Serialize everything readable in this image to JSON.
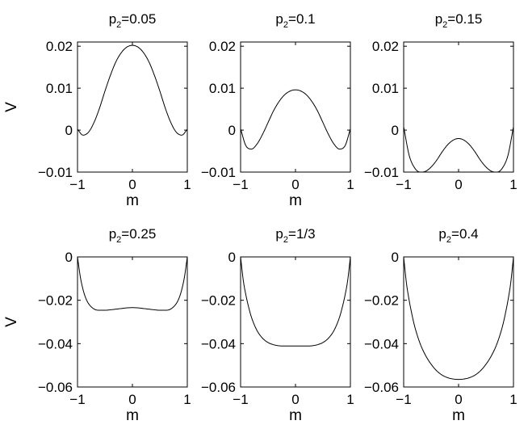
{
  "chart_data": [
    {
      "type": "line",
      "title": {
        "base": "p",
        "sub": "2",
        "rest": "=0.05"
      },
      "xlabel": "m",
      "ylabel": "V",
      "xlim": [
        -1,
        1
      ],
      "ylim": [
        -0.01,
        0.021
      ],
      "xticks": [
        -1,
        0,
        1
      ],
      "yticks": [
        -0.01,
        0,
        0.01,
        0.02
      ],
      "xtick_labels": [
        "−1",
        "0",
        "1"
      ],
      "ytick_labels": [
        "−0.01",
        "0",
        "0.01",
        "0.02"
      ],
      "show_ylabel": true,
      "grid": false,
      "series": [
        {
          "x": [
            -1,
            -0.9,
            -0.8,
            -0.7,
            -0.6,
            -0.5,
            -0.4,
            -0.3,
            -0.2,
            -0.1,
            0,
            0.1,
            0.2,
            0.3,
            0.4,
            0.5,
            0.6,
            0.7,
            0.8,
            0.9,
            1
          ],
          "y": [
            0.0002,
            -0.0012,
            -0.0005,
            0.0018,
            0.0052,
            0.0093,
            0.0131,
            0.0163,
            0.0185,
            0.0198,
            0.0202,
            0.0198,
            0.0185,
            0.0163,
            0.0131,
            0.0093,
            0.0052,
            0.0018,
            -0.0005,
            -0.0012,
            0.0002
          ]
        }
      ]
    },
    {
      "type": "line",
      "title": {
        "base": "p",
        "sub": "2",
        "rest": "=0.1"
      },
      "xlabel": "m",
      "ylabel": "",
      "xlim": [
        -1,
        1
      ],
      "ylim": [
        -0.01,
        0.021
      ],
      "xticks": [
        -1,
        0,
        1
      ],
      "yticks": [
        -0.01,
        0,
        0.01,
        0.02
      ],
      "xtick_labels": [
        "−1",
        "0",
        "1"
      ],
      "ytick_labels": [
        "−0.01",
        "0",
        "0.01",
        "0.02"
      ],
      "show_ylabel": false,
      "grid": false,
      "series": [
        {
          "x": [
            -1,
            -0.9,
            -0.8,
            -0.7,
            -0.6,
            -0.5,
            -0.4,
            -0.3,
            -0.2,
            -0.1,
            0,
            0.1,
            0.2,
            0.3,
            0.4,
            0.5,
            0.6,
            0.7,
            0.8,
            0.9,
            1
          ],
          "y": [
            0.0003,
            -0.0038,
            -0.0045,
            -0.0033,
            -0.001,
            0.0018,
            0.0046,
            0.0068,
            0.0084,
            0.0093,
            0.0096,
            0.0093,
            0.0084,
            0.0068,
            0.0046,
            0.0018,
            -0.001,
            -0.0033,
            -0.0045,
            -0.0038,
            0.0003
          ]
        }
      ]
    },
    {
      "type": "line",
      "title": {
        "base": "p",
        "sub": "2",
        "rest": "=0.15"
      },
      "xlabel": "",
      "ylabel": "",
      "xlim": [
        -1,
        1
      ],
      "ylim": [
        -0.01,
        0.021
      ],
      "xticks": [
        -1,
        0,
        1
      ],
      "yticks": [
        -0.01,
        0,
        0.01,
        0.02
      ],
      "xtick_labels": [
        "−1",
        "0",
        "1"
      ],
      "ytick_labels": [
        "−0.01",
        "0",
        "0.01",
        "0.02"
      ],
      "show_ylabel": false,
      "grid": false,
      "series": [
        {
          "x": [
            -1,
            -0.9,
            -0.8,
            -0.7,
            -0.6,
            -0.5,
            -0.4,
            -0.3,
            -0.2,
            -0.1,
            0,
            0.1,
            0.2,
            0.3,
            0.4,
            0.5,
            0.6,
            0.7,
            0.8,
            0.9,
            1
          ],
          "y": [
            0.0008,
            -0.006,
            -0.009,
            -0.01,
            -0.0098,
            -0.0088,
            -0.0072,
            -0.0052,
            -0.0035,
            -0.0024,
            -0.002,
            -0.0024,
            -0.0035,
            -0.0052,
            -0.0072,
            -0.0088,
            -0.0098,
            -0.01,
            -0.009,
            -0.006,
            0.0008
          ]
        }
      ]
    },
    {
      "type": "line",
      "title": {
        "base": "p",
        "sub": "2",
        "rest": "=0.25"
      },
      "xlabel": "m",
      "ylabel": "V",
      "xlim": [
        -1,
        1
      ],
      "ylim": [
        -0.06,
        0
      ],
      "xticks": [
        -1,
        0,
        1
      ],
      "yticks": [
        -0.06,
        -0.04,
        -0.02,
        0
      ],
      "xtick_labels": [
        "−1",
        "0",
        "1"
      ],
      "ytick_labels": [
        "−0.06",
        "−0.04",
        "−0.02",
        "0"
      ],
      "show_ylabel": true,
      "grid": false,
      "series": [
        {
          "x": [
            -1,
            -0.95,
            -0.9,
            -0.85,
            -0.8,
            -0.7,
            -0.6,
            -0.5,
            -0.4,
            -0.3,
            -0.2,
            -0.1,
            0,
            0.1,
            0.2,
            0.3,
            0.4,
            0.5,
            0.6,
            0.7,
            0.8,
            0.85,
            0.9,
            0.95,
            1
          ],
          "y": [
            0,
            -0.009,
            -0.015,
            -0.019,
            -0.0215,
            -0.024,
            -0.0246,
            -0.0246,
            -0.0244,
            -0.0241,
            -0.0238,
            -0.0235,
            -0.0234,
            -0.0235,
            -0.0238,
            -0.0241,
            -0.0244,
            -0.0246,
            -0.0246,
            -0.024,
            -0.0215,
            -0.019,
            -0.015,
            -0.009,
            0
          ]
        }
      ]
    },
    {
      "type": "line",
      "title": {
        "base": "p",
        "sub": "2",
        "rest": "=1/3"
      },
      "xlabel": "m",
      "ylabel": "",
      "xlim": [
        -1,
        1
      ],
      "ylim": [
        -0.06,
        0
      ],
      "xticks": [
        -1,
        0,
        1
      ],
      "yticks": [
        -0.06,
        -0.04,
        -0.02,
        0
      ],
      "xtick_labels": [
        "−1",
        "0",
        "1"
      ],
      "ytick_labels": [
        "−0.06",
        "−0.04",
        "−0.02",
        "0"
      ],
      "show_ylabel": false,
      "grid": false,
      "series": [
        {
          "x": [
            -1,
            -0.95,
            -0.9,
            -0.85,
            -0.8,
            -0.7,
            -0.6,
            -0.5,
            -0.4,
            -0.3,
            -0.2,
            -0.1,
            0,
            0.1,
            0.2,
            0.3,
            0.4,
            0.5,
            0.6,
            0.7,
            0.8,
            0.85,
            0.9,
            0.95,
            1
          ],
          "y": [
            0,
            -0.011,
            -0.018,
            -0.0235,
            -0.028,
            -0.034,
            -0.0375,
            -0.0395,
            -0.0405,
            -0.041,
            -0.0411,
            -0.0411,
            -0.0411,
            -0.0411,
            -0.0411,
            -0.041,
            -0.0405,
            -0.0395,
            -0.0375,
            -0.034,
            -0.028,
            -0.0235,
            -0.018,
            -0.011,
            0
          ]
        }
      ]
    },
    {
      "type": "line",
      "title": {
        "base": "p",
        "sub": "2",
        "rest": "=0.4"
      },
      "xlabel": "m",
      "ylabel": "",
      "xlim": [
        -1,
        1
      ],
      "ylim": [
        -0.06,
        0
      ],
      "xticks": [
        -1,
        0,
        1
      ],
      "yticks": [
        -0.06,
        -0.04,
        -0.02,
        0
      ],
      "xtick_labels": [
        "−1",
        "0",
        "1"
      ],
      "ytick_labels": [
        "−0.06",
        "−0.04",
        "−0.02",
        "0"
      ],
      "show_ylabel": false,
      "grid": false,
      "series": [
        {
          "x": [
            -1,
            -0.95,
            -0.9,
            -0.85,
            -0.8,
            -0.7,
            -0.6,
            -0.5,
            -0.4,
            -0.3,
            -0.2,
            -0.1,
            0,
            0.1,
            0.2,
            0.3,
            0.4,
            0.5,
            0.6,
            0.7,
            0.8,
            0.85,
            0.9,
            0.95,
            1
          ],
          "y": [
            0,
            -0.012,
            -0.02,
            -0.0265,
            -0.032,
            -0.04,
            -0.0455,
            -0.0495,
            -0.0525,
            -0.0545,
            -0.0557,
            -0.0563,
            -0.0565,
            -0.0563,
            -0.0557,
            -0.0545,
            -0.0525,
            -0.0495,
            -0.0455,
            -0.04,
            -0.032,
            -0.0265,
            -0.02,
            -0.012,
            0
          ]
        }
      ]
    }
  ]
}
